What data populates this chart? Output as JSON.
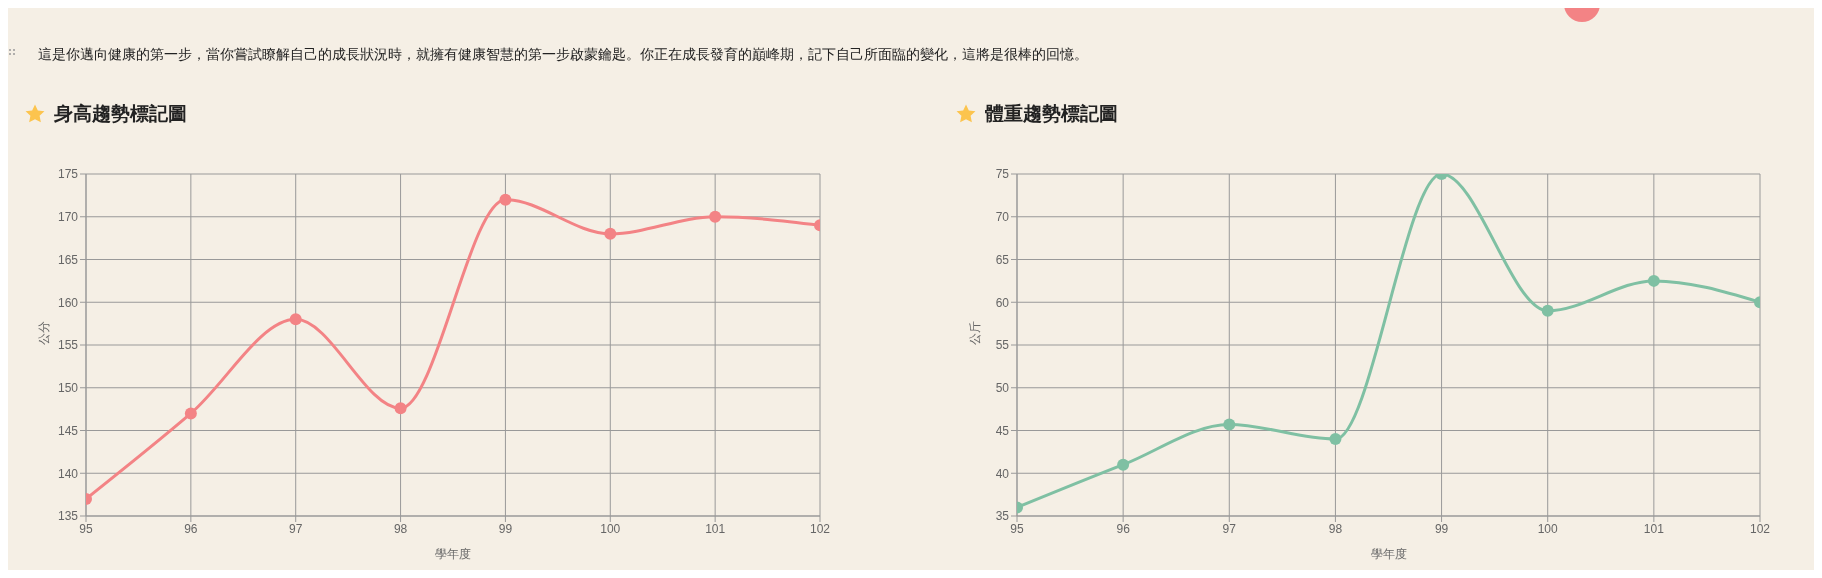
{
  "chart_data": [
    {
      "type": "line",
      "title": "身高趨勢標記圖",
      "annotations": [
        "這是你邁向健康的第一步，當你嘗試瞭解自己的成長狀況時，就擁有健康智慧的第一步啟蒙鑰匙。你正在成長發育的巔峰期，記下自己所面臨的變化，這將是很棒的回憶。"
      ],
      "xlabel": "學年度",
      "ylabel": "公分",
      "x": [
        95,
        96,
        97,
        98,
        99,
        100,
        101,
        102
      ],
      "series": [
        {
          "color": "#f38385",
          "values": [
            137,
            147,
            158,
            147.6,
            172,
            168,
            170,
            169
          ]
        }
      ],
      "xlim": [
        95,
        102
      ],
      "xticks": [
        95,
        96,
        97,
        98,
        99,
        100,
        101,
        102
      ],
      "ylim": [
        135,
        175
      ],
      "yticks": [
        135,
        140,
        145,
        150,
        155,
        160,
        165,
        170,
        175
      ],
      "grid": true,
      "marker": "circle",
      "line_style": "solid"
    },
    {
      "type": "line",
      "title": "體重趨勢標記圖",
      "xlabel": "學年度",
      "ylabel": "公斤",
      "x": [
        95,
        96,
        97,
        98,
        99,
        100,
        101,
        102
      ],
      "series": [
        {
          "color": "#7fc0a3",
          "values": [
            36,
            41,
            45.7,
            44,
            75,
            59,
            62.5,
            60
          ]
        }
      ],
      "xlim": [
        95,
        102
      ],
      "xticks": [
        95,
        96,
        97,
        98,
        99,
        100,
        101,
        102
      ],
      "ylim": [
        35,
        75
      ],
      "yticks": [
        35,
        40,
        45,
        50,
        55,
        60,
        65,
        70,
        75
      ],
      "grid": true,
      "marker": "circle",
      "line_style": "solid"
    }
  ]
}
